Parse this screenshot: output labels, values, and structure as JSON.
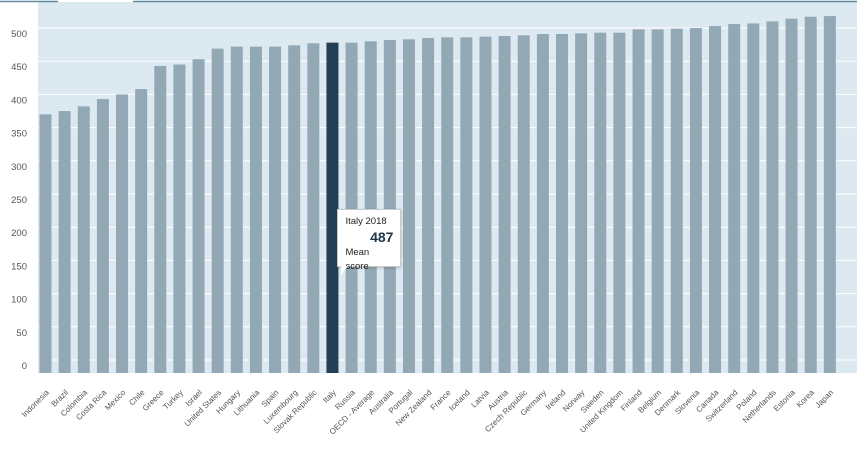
{
  "colors": {
    "plot_background": "#dce9f1",
    "bar": "#93a8b5",
    "bar_highlight": "#233f55",
    "gridline": "#ffffff",
    "top_rule": "#5f8aa0"
  },
  "tooltip": {
    "title": "Italy 2018",
    "value": "487",
    "label": "Mean score"
  },
  "chart_data": {
    "type": "bar",
    "title": "",
    "xlabel": "",
    "ylabel": "",
    "ylim": [
      0,
      525
    ],
    "yticks": [
      0,
      50,
      100,
      150,
      200,
      250,
      300,
      350,
      400,
      450,
      500
    ],
    "grid": true,
    "legend": "none",
    "highlight": "Italy",
    "categories": [
      "Indonesia",
      "Brazil",
      "Colombia",
      "Costa Rica",
      "Mexico",
      "Chile",
      "Greece",
      "Turkey",
      "Israel",
      "United States",
      "Hungary",
      "Lithuania",
      "Spain",
      "Luxembourg",
      "Slovak Republic",
      "Italy",
      "Russia",
      "OECD - Average",
      "Australia",
      "Portugal",
      "New Zealand",
      "France",
      "Iceland",
      "Latvia",
      "Austria",
      "Czech Republic",
      "Germany",
      "Ireland",
      "Norway",
      "Sweden",
      "United Kingdom",
      "Finland",
      "Belgium",
      "Denmark",
      "Slovenia",
      "Canada",
      "Switzerland",
      "Poland",
      "Netherlands",
      "Estonia",
      "Korea",
      "Japan"
    ],
    "values": [
      379,
      384,
      391,
      402,
      409,
      417,
      452,
      454,
      462,
      478,
      481,
      481,
      481,
      483,
      486,
      487,
      487,
      489,
      491,
      492,
      494,
      495,
      495,
      496,
      497,
      498,
      500,
      500,
      501,
      502,
      502,
      507,
      507,
      508,
      509,
      512,
      515,
      516,
      519,
      523,
      526,
      527
    ]
  }
}
